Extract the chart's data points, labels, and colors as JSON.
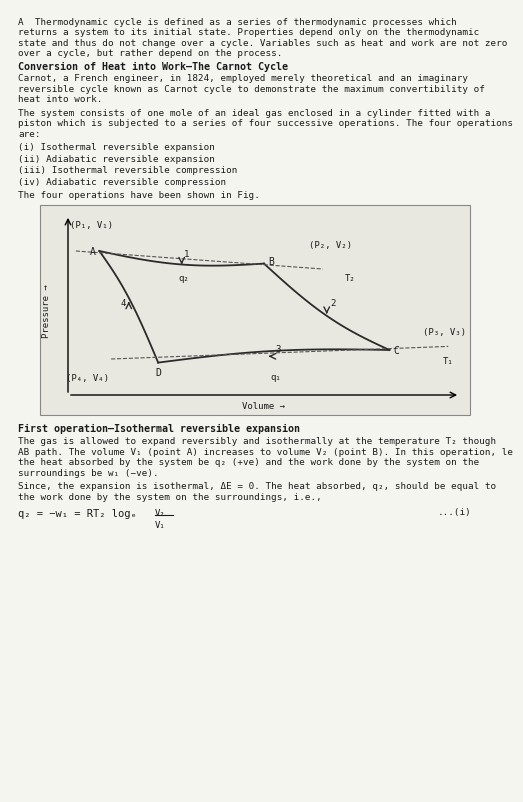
{
  "title_text": "A  Thermodynamic cycle is defined as a series of thermodynamic processes which\nreturns a system to its initial state. Properties depend only on the thermodynamic\nstate and thus do not change over a cycle. Variables such as heat and work are not zero\nover a cycle, but rather depend on the process.",
  "bold_heading": "Conversion of Heat into Work—The Carnot Cycle",
  "para1": "Carnot, a French engineer, in 1824, employed merely theoretical and an imaginary\nreversible cycle known as Carnot cycle to demonstrate the maximum convertibility of\nheat into work.",
  "para2": "The system consists of one mole of an ideal gas enclosed in a cylinder fitted with a\npiston which is subjected to a series of four successive operations. The four operations\nare:",
  "list_items": [
    "(i) Isothermal reversible expansion",
    "(ii) Adiabatic reversible expansion",
    "(iii) Isothermal reversible compression",
    "(iv) Adiabatic reversible compression"
  ],
  "fig_caption": "The four operations have been shown in Fig.",
  "xlabel": "Volume →",
  "ylabel": "Pressure →",
  "section_heading": "First operation—Isothermal reversible expansion",
  "para3": "The gas is allowed to expand reversibly and isothermally at the temperature T₂ though\nAB path. The volume V₁ (point A) increases to volume V₂ (point B). In this operation, le\nthe heat absorbed by the system be q₂ (+ve) and the work done by the system on the\nsurroundings be w₁ (−ve).",
  "para4": "Since, the expansion is isothermal, ΔE = 0. The heat absorbed, q₂, should be equal to\nthe work done by the system on the surroundings, i.e.,",
  "equation": "q₂ = −w₁ = RT₂ logₑ  V₂/V₁",
  "eq_number": "...(i)",
  "bg_color": "#f5f5f0",
  "text_color": "#1a1a1a",
  "plot_bg": "#e8e8e0",
  "curve_color": "#2a2a2a",
  "dashed_color": "#555555"
}
